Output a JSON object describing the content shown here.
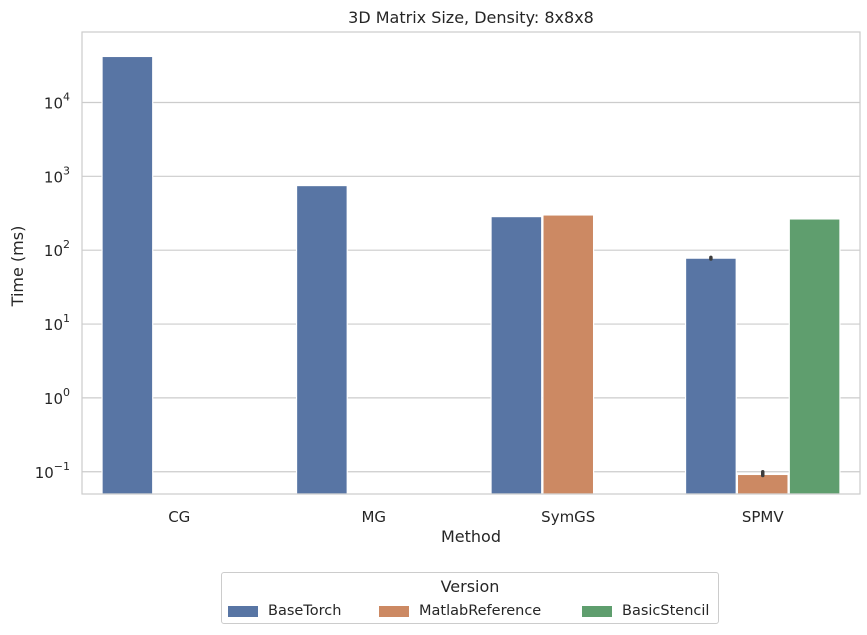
{
  "chart_data": {
    "type": "bar",
    "title": "3D Matrix Size, Density: 8x8x8",
    "xlabel": "Method",
    "ylabel": "Time (ms)",
    "yscale": "log",
    "ylim": [
      0.05,
      90000
    ],
    "yticks": [
      {
        "value": 0.1,
        "base": "10",
        "exp": "−1"
      },
      {
        "value": 1,
        "base": "10",
        "exp": "0"
      },
      {
        "value": 10,
        "base": "10",
        "exp": "1"
      },
      {
        "value": 100,
        "base": "10",
        "exp": "2"
      },
      {
        "value": 1000,
        "base": "10",
        "exp": "3"
      },
      {
        "value": 10000,
        "base": "10",
        "exp": "4"
      }
    ],
    "grid": true,
    "categories": [
      "CG",
      "MG",
      "SymGS",
      "SPMV"
    ],
    "series": [
      {
        "name": "BaseTorch",
        "color": "#5875a4",
        "values": [
          42000,
          750,
          285,
          78
        ]
      },
      {
        "name": "MatlabReference",
        "color": "#cc8963",
        "values": [
          null,
          null,
          300,
          0.092
        ]
      },
      {
        "name": "BasicStencil",
        "color": "#5f9e6e",
        "values": [
          null,
          null,
          null,
          265
        ]
      }
    ],
    "error_bars": [
      {
        "series": 0,
        "category": 3,
        "low": 76,
        "high": 80
      },
      {
        "series": 1,
        "category": 3,
        "low": 0.089,
        "high": 0.1
      }
    ],
    "legend": {
      "title": "Version",
      "position": "bottom-center"
    }
  }
}
